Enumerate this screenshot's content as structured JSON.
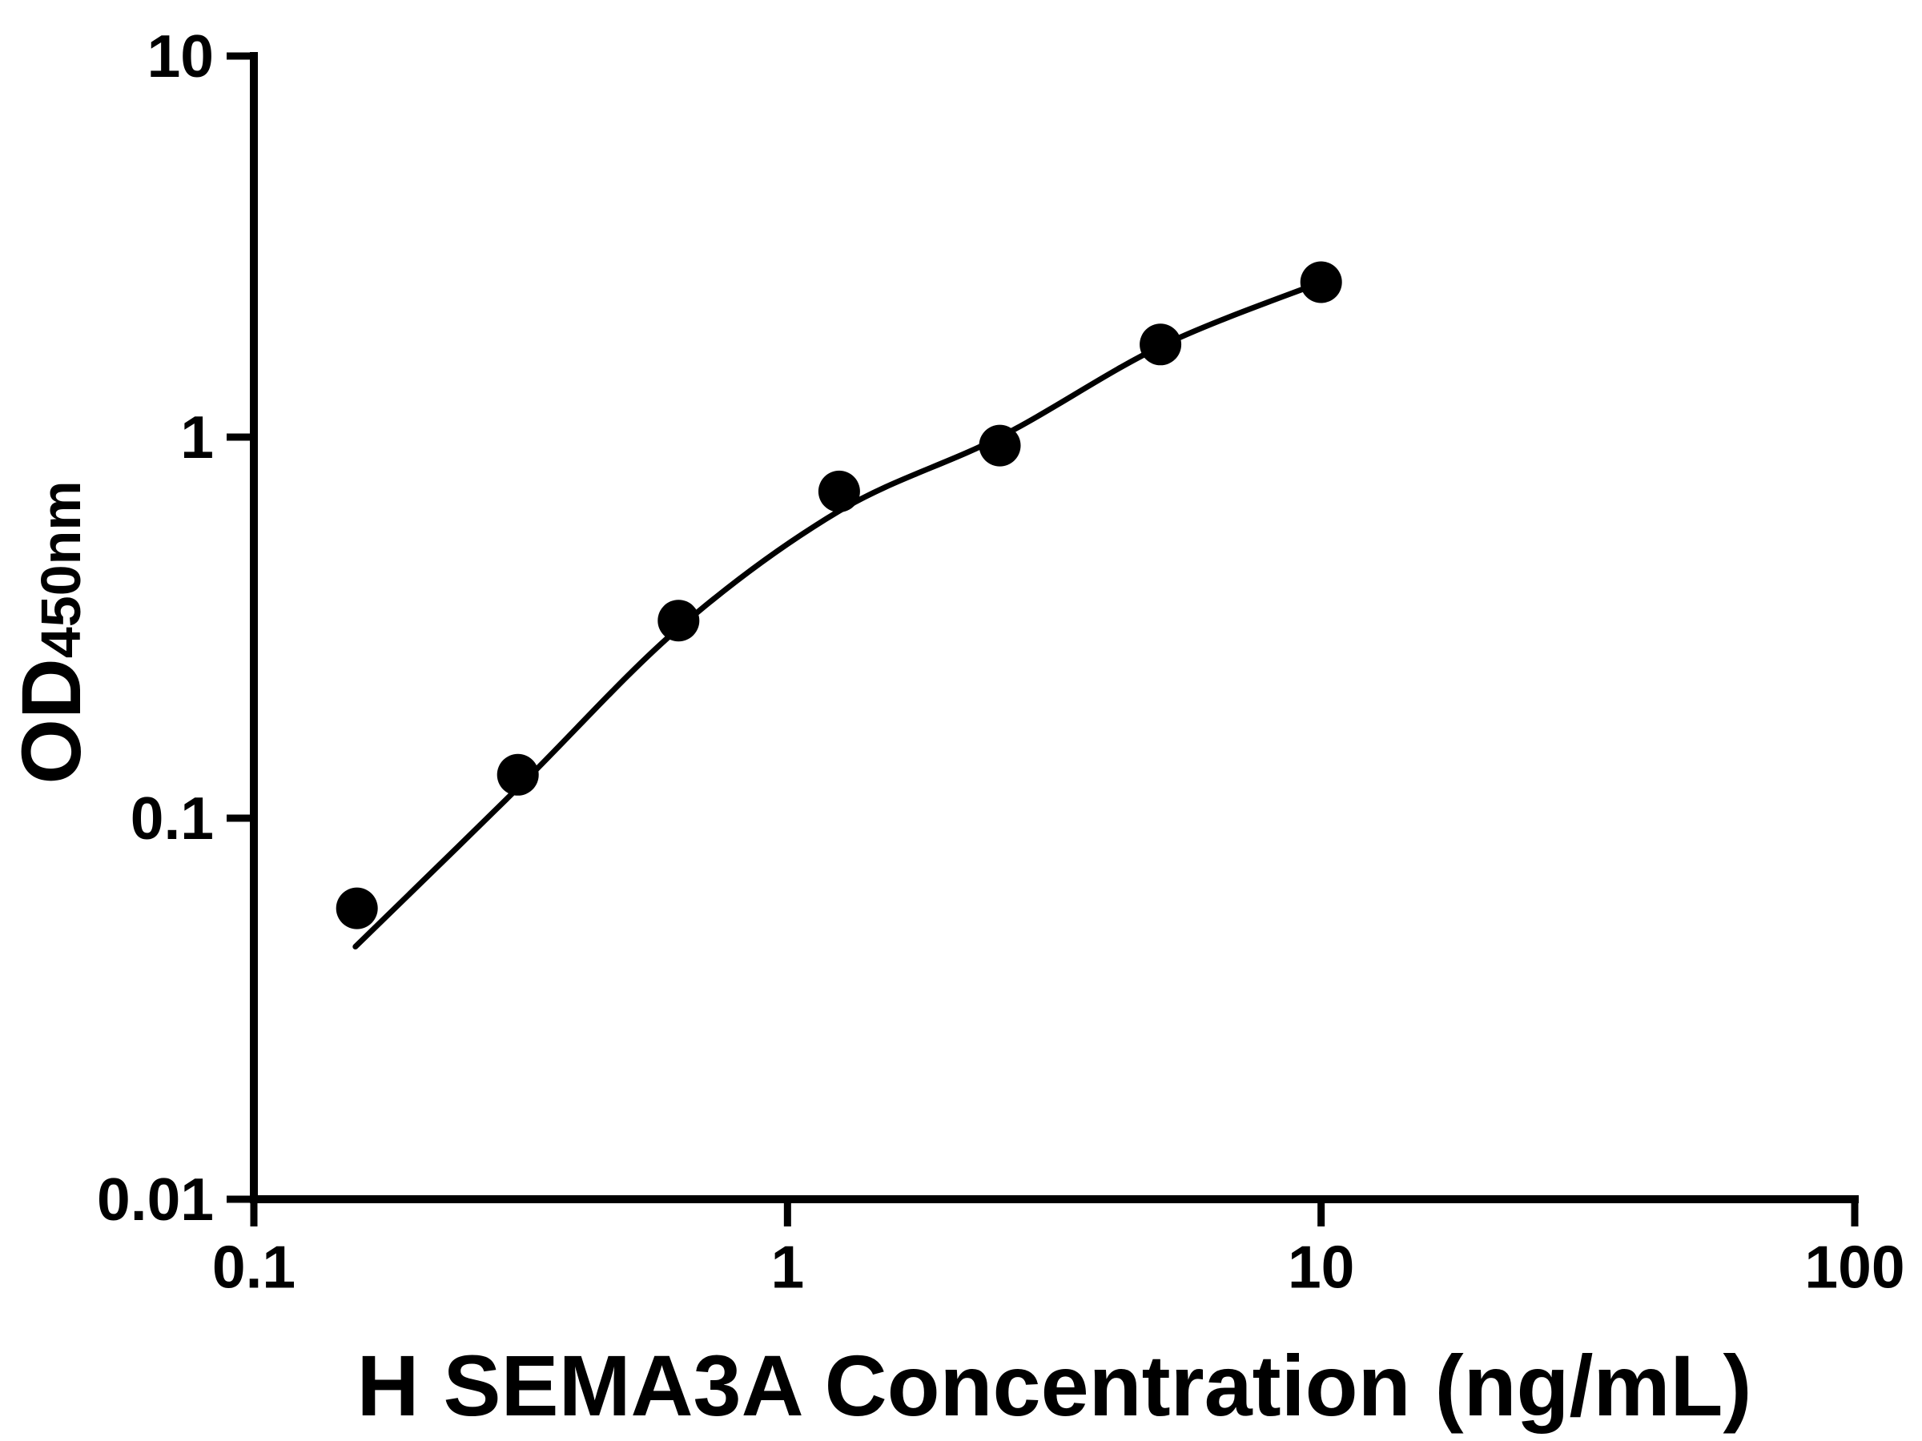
{
  "chart_data": {
    "type": "scatter",
    "title": "",
    "xlabel": "H SEMA3A Concentration (ng/mL)",
    "ylabel_main": "OD",
    "ylabel_sub": "450nm",
    "x_scale": "log",
    "y_scale": "log",
    "xlim": [
      0.1,
      100
    ],
    "ylim": [
      0.01,
      10
    ],
    "x_ticks": [
      0.1,
      1,
      10,
      100
    ],
    "x_tick_labels": [
      "0.1",
      "1",
      "10",
      "100"
    ],
    "y_ticks": [
      0.01,
      0.1,
      1,
      10
    ],
    "y_tick_labels": [
      "0.01",
      "0.1",
      "1",
      "10"
    ],
    "grid": false,
    "legend": "none",
    "series": [
      {
        "name": "standard-points",
        "type": "scatter",
        "marker": "filled-circle",
        "color": "#000000",
        "x": [
          0.156,
          0.3125,
          0.625,
          1.25,
          2.5,
          5,
          10
        ],
        "y": [
          0.058,
          0.13,
          0.33,
          0.72,
          0.95,
          1.75,
          2.55
        ]
      },
      {
        "name": "fitted-curve",
        "type": "line",
        "color": "#000000",
        "x": [
          0.155,
          0.3125,
          0.625,
          1.25,
          2.5,
          5,
          10
        ],
        "y": [
          0.046,
          0.12,
          0.315,
          0.64,
          1.0,
          1.73,
          2.55
        ]
      }
    ],
    "colors": {
      "foreground": "#000000",
      "background": "#ffffff"
    }
  }
}
